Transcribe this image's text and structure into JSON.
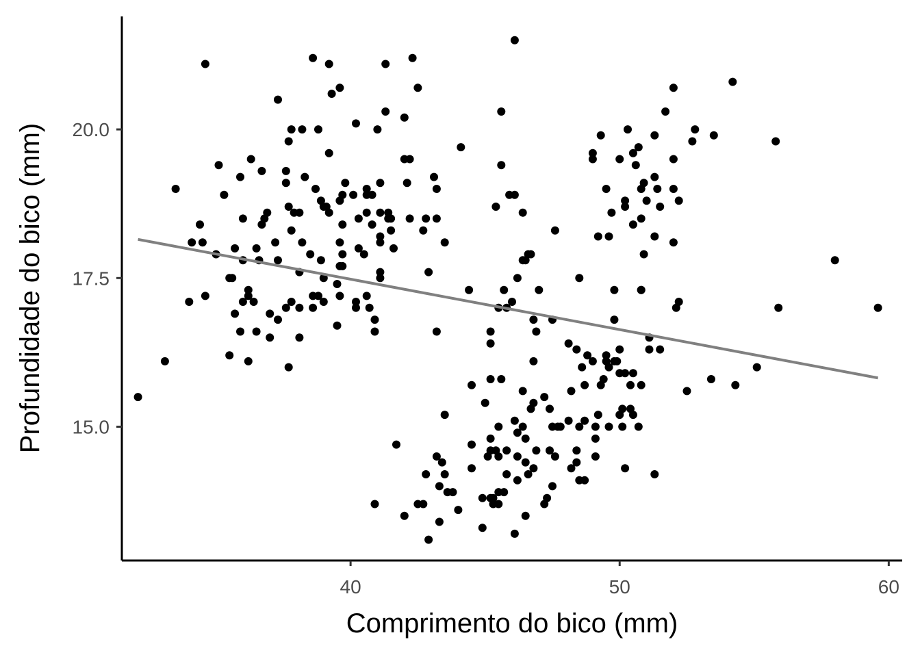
{
  "chart_data": {
    "type": "scatter",
    "xlabel": "Comprimento do bico (mm)",
    "ylabel": "Profundidade do bico (mm)",
    "xlim": [
      31.5,
      60.5
    ],
    "ylim": [
      12.75,
      21.9
    ],
    "x_ticks": [
      40,
      50,
      60
    ],
    "x_tick_labels": [
      "40",
      "50",
      "60"
    ],
    "y_ticks": [
      15.0,
      17.5,
      20.0
    ],
    "y_tick_labels": [
      "15.0",
      "17.5",
      "20.0"
    ],
    "grid": false,
    "point_color": "#000000",
    "line_color": "#808080",
    "trend_line": {
      "x": [
        32.1,
        59.6
      ],
      "y": [
        18.15,
        15.82
      ]
    },
    "series": [
      {
        "points": [
          [
            32.1,
            15.5
          ],
          [
            33.1,
            16.1
          ],
          [
            33.5,
            19.0
          ],
          [
            34.0,
            17.1
          ],
          [
            34.1,
            18.1
          ],
          [
            34.4,
            18.4
          ],
          [
            34.5,
            18.1
          ],
          [
            34.6,
            21.1
          ],
          [
            34.6,
            17.2
          ],
          [
            35.0,
            17.9
          ],
          [
            35.1,
            19.4
          ],
          [
            35.3,
            18.9
          ],
          [
            35.5,
            17.5
          ],
          [
            35.5,
            16.2
          ],
          [
            35.6,
            17.5
          ],
          [
            35.7,
            16.9
          ],
          [
            35.7,
            18.0
          ],
          [
            35.9,
            19.2
          ],
          [
            35.9,
            16.6
          ],
          [
            36.0,
            17.8
          ],
          [
            36.0,
            17.1
          ],
          [
            36.0,
            18.5
          ],
          [
            36.2,
            17.2
          ],
          [
            36.2,
            17.3
          ],
          [
            36.2,
            16.1
          ],
          [
            36.3,
            19.5
          ],
          [
            36.4,
            17.1
          ],
          [
            36.5,
            18.0
          ],
          [
            36.5,
            16.6
          ],
          [
            36.6,
            17.8
          ],
          [
            36.7,
            18.4
          ],
          [
            36.7,
            19.3
          ],
          [
            36.8,
            18.5
          ],
          [
            36.9,
            18.6
          ],
          [
            37.0,
            16.9
          ],
          [
            37.0,
            16.5
          ],
          [
            37.2,
            18.1
          ],
          [
            37.3,
            20.5
          ],
          [
            37.3,
            17.8
          ],
          [
            37.3,
            16.8
          ],
          [
            37.6,
            19.3
          ],
          [
            37.6,
            17.0
          ],
          [
            37.6,
            19.1
          ],
          [
            37.7,
            18.7
          ],
          [
            37.7,
            16.0
          ],
          [
            37.7,
            19.8
          ],
          [
            37.8,
            17.1
          ],
          [
            37.8,
            18.3
          ],
          [
            37.8,
            20.0
          ],
          [
            37.9,
            18.6
          ],
          [
            38.1,
            18.6
          ],
          [
            38.1,
            17.6
          ],
          [
            38.1,
            17.0
          ],
          [
            38.1,
            16.5
          ],
          [
            38.2,
            18.1
          ],
          [
            38.2,
            20.0
          ],
          [
            38.3,
            19.2
          ],
          [
            38.5,
            17.9
          ],
          [
            38.6,
            21.2
          ],
          [
            38.6,
            17.2
          ],
          [
            38.6,
            17.0
          ],
          [
            38.7,
            19.0
          ],
          [
            38.8,
            17.2
          ],
          [
            38.8,
            20.0
          ],
          [
            38.9,
            18.8
          ],
          [
            38.9,
            17.8
          ],
          [
            39.0,
            18.7
          ],
          [
            39.0,
            17.1
          ],
          [
            39.0,
            17.5
          ],
          [
            39.1,
            18.7
          ],
          [
            39.2,
            19.6
          ],
          [
            39.2,
            21.1
          ],
          [
            39.2,
            18.6
          ],
          [
            39.3,
            20.6
          ],
          [
            39.5,
            17.4
          ],
          [
            39.5,
            16.7
          ],
          [
            39.6,
            18.8
          ],
          [
            39.6,
            17.7
          ],
          [
            39.6,
            20.7
          ],
          [
            39.6,
            18.1
          ],
          [
            39.6,
            17.2
          ],
          [
            39.7,
            18.4
          ],
          [
            39.7,
            17.9
          ],
          [
            39.7,
            18.9
          ],
          [
            39.7,
            17.7
          ],
          [
            39.8,
            19.1
          ],
          [
            40.1,
            18.9
          ],
          [
            40.2,
            17.0
          ],
          [
            40.2,
            17.1
          ],
          [
            40.2,
            20.1
          ],
          [
            40.3,
            18.5
          ],
          [
            40.3,
            18.0
          ],
          [
            40.5,
            17.9
          ],
          [
            40.6,
            18.9
          ],
          [
            40.6,
            18.6
          ],
          [
            40.6,
            19.0
          ],
          [
            40.6,
            17.2
          ],
          [
            40.7,
            17.0
          ],
          [
            40.8,
            18.4
          ],
          [
            40.8,
            18.9
          ],
          [
            40.9,
            16.8
          ],
          [
            40.9,
            16.6
          ],
          [
            41.0,
            20.0
          ],
          [
            41.1,
            18.2
          ],
          [
            41.1,
            19.1
          ],
          [
            41.1,
            18.6
          ],
          [
            41.1,
            17.6
          ],
          [
            41.1,
            18.1
          ],
          [
            41.1,
            17.5
          ],
          [
            41.3,
            21.1
          ],
          [
            41.3,
            20.3
          ],
          [
            41.4,
            18.6
          ],
          [
            41.4,
            18.5
          ],
          [
            41.5,
            18.5
          ],
          [
            41.5,
            18.3
          ],
          [
            41.6,
            18.0
          ],
          [
            42.0,
            20.2
          ],
          [
            42.0,
            19.5
          ],
          [
            42.1,
            19.1
          ],
          [
            42.2,
            18.5
          ],
          [
            42.2,
            19.5
          ],
          [
            42.3,
            21.2
          ],
          [
            42.5,
            20.7
          ],
          [
            42.7,
            18.3
          ],
          [
            42.8,
            18.5
          ],
          [
            42.9,
            17.6
          ],
          [
            43.1,
            19.2
          ],
          [
            43.2,
            19.0
          ],
          [
            43.2,
            18.5
          ],
          [
            43.2,
            16.6
          ],
          [
            43.5,
            18.1
          ],
          [
            44.1,
            19.7
          ],
          [
            45.4,
            18.7
          ],
          [
            45.5,
            17.0
          ],
          [
            45.6,
            19.4
          ],
          [
            45.6,
            20.3
          ],
          [
            45.7,
            17.3
          ],
          [
            45.8,
            17.0
          ],
          [
            45.9,
            18.9
          ],
          [
            46.0,
            17.1
          ],
          [
            46.1,
            18.9
          ],
          [
            46.1,
            21.5
          ],
          [
            46.2,
            17.5
          ],
          [
            46.4,
            18.6
          ],
          [
            46.4,
            17.8
          ],
          [
            46.5,
            17.8
          ],
          [
            46.6,
            17.9
          ],
          [
            46.7,
            17.9
          ],
          [
            46.8,
            16.8
          ],
          [
            46.9,
            16.6
          ],
          [
            47.0,
            17.3
          ],
          [
            47.5,
            16.8
          ],
          [
            47.6,
            18.3
          ],
          [
            48.5,
            17.5
          ],
          [
            49.0,
            19.6
          ],
          [
            49.0,
            19.5
          ],
          [
            49.2,
            18.2
          ],
          [
            49.3,
            19.9
          ],
          [
            49.5,
            19.0
          ],
          [
            49.6,
            18.2
          ],
          [
            49.7,
            18.6
          ],
          [
            49.8,
            17.3
          ],
          [
            49.8,
            16.8
          ],
          [
            50.0,
            19.5
          ],
          [
            50.2,
            18.7
          ],
          [
            50.2,
            18.8
          ],
          [
            50.3,
            20.0
          ],
          [
            50.5,
            18.4
          ],
          [
            50.5,
            19.6
          ],
          [
            50.6,
            19.4
          ],
          [
            50.7,
            19.7
          ],
          [
            50.8,
            18.5
          ],
          [
            50.8,
            19.0
          ],
          [
            50.8,
            17.3
          ],
          [
            50.9,
            17.9
          ],
          [
            50.9,
            19.1
          ],
          [
            51.0,
            18.8
          ],
          [
            51.3,
            19.2
          ],
          [
            51.3,
            18.2
          ],
          [
            51.3,
            19.9
          ],
          [
            51.4,
            19.0
          ],
          [
            51.5,
            18.7
          ],
          [
            51.7,
            20.3
          ],
          [
            52.0,
            18.1
          ],
          [
            52.0,
            19.5
          ],
          [
            52.0,
            20.7
          ],
          [
            52.0,
            19.0
          ],
          [
            52.2,
            18.8
          ],
          [
            52.7,
            19.8
          ],
          [
            52.8,
            20.0
          ],
          [
            53.5,
            19.9
          ],
          [
            54.2,
            20.8
          ],
          [
            55.8,
            19.8
          ],
          [
            58.0,
            17.8
          ],
          [
            40.9,
            13.7
          ],
          [
            41.7,
            14.7
          ],
          [
            42.0,
            13.5
          ],
          [
            42.5,
            13.7
          ],
          [
            42.7,
            13.7
          ],
          [
            42.8,
            14.2
          ],
          [
            42.9,
            13.1
          ],
          [
            43.2,
            14.5
          ],
          [
            43.3,
            13.4
          ],
          [
            43.3,
            14.0
          ],
          [
            43.4,
            14.4
          ],
          [
            43.5,
            14.2
          ],
          [
            43.5,
            15.2
          ],
          [
            43.6,
            13.9
          ],
          [
            43.8,
            13.9
          ],
          [
            44.0,
            13.6
          ],
          [
            44.4,
            17.3
          ],
          [
            44.5,
            14.3
          ],
          [
            44.5,
            15.7
          ],
          [
            44.5,
            14.7
          ],
          [
            44.9,
            13.3
          ],
          [
            44.9,
            13.8
          ],
          [
            45.0,
            15.4
          ],
          [
            45.1,
            14.5
          ],
          [
            45.2,
            13.8
          ],
          [
            45.2,
            14.8
          ],
          [
            45.2,
            16.4
          ],
          [
            45.2,
            15.8
          ],
          [
            45.2,
            16.6
          ],
          [
            45.2,
            14.6
          ],
          [
            45.3,
            13.7
          ],
          [
            45.3,
            13.8
          ],
          [
            45.4,
            14.6
          ],
          [
            45.5,
            13.7
          ],
          [
            45.5,
            13.9
          ],
          [
            45.5,
            15.0
          ],
          [
            45.5,
            14.5
          ],
          [
            45.6,
            15.8
          ],
          [
            45.7,
            13.9
          ],
          [
            45.8,
            14.6
          ],
          [
            45.8,
            14.2
          ],
          [
            46.1,
            13.2
          ],
          [
            46.1,
            15.1
          ],
          [
            46.2,
            14.5
          ],
          [
            46.2,
            14.9
          ],
          [
            46.2,
            14.1
          ],
          [
            46.4,
            15.0
          ],
          [
            46.4,
            15.6
          ],
          [
            46.5,
            14.4
          ],
          [
            46.5,
            14.8
          ],
          [
            46.5,
            13.5
          ],
          [
            46.6,
            14.2
          ],
          [
            46.7,
            15.3
          ],
          [
            46.8,
            15.4
          ],
          [
            46.8,
            16.1
          ],
          [
            46.8,
            14.3
          ],
          [
            46.9,
            14.6
          ],
          [
            47.2,
            13.7
          ],
          [
            47.2,
            15.5
          ],
          [
            47.3,
            13.8
          ],
          [
            47.4,
            15.3
          ],
          [
            47.4,
            14.6
          ],
          [
            47.5,
            14.0
          ],
          [
            47.5,
            15.0
          ],
          [
            47.6,
            14.5
          ],
          [
            47.7,
            15.0
          ],
          [
            47.8,
            15.0
          ],
          [
            48.1,
            16.4
          ],
          [
            48.1,
            15.1
          ],
          [
            48.2,
            14.3
          ],
          [
            48.2,
            15.6
          ],
          [
            48.4,
            14.4
          ],
          [
            48.4,
            16.3
          ],
          [
            48.4,
            14.6
          ],
          [
            48.5,
            14.1
          ],
          [
            48.5,
            15.0
          ],
          [
            48.6,
            16.0
          ],
          [
            48.7,
            14.1
          ],
          [
            48.7,
            15.1
          ],
          [
            48.7,
            15.7
          ],
          [
            48.8,
            16.2
          ],
          [
            49.0,
            16.1
          ],
          [
            49.1,
            14.8
          ],
          [
            49.1,
            14.5
          ],
          [
            49.1,
            15.0
          ],
          [
            49.2,
            15.2
          ],
          [
            49.3,
            15.7
          ],
          [
            49.4,
            15.8
          ],
          [
            49.5,
            16.1
          ],
          [
            49.5,
            16.2
          ],
          [
            49.6,
            15.0
          ],
          [
            49.6,
            16.0
          ],
          [
            49.8,
            16.1
          ],
          [
            49.9,
            16.1
          ],
          [
            50.0,
            15.9
          ],
          [
            50.0,
            15.2
          ],
          [
            50.0,
            16.3
          ],
          [
            50.1,
            15.0
          ],
          [
            50.1,
            15.3
          ],
          [
            50.2,
            14.3
          ],
          [
            50.2,
            15.9
          ],
          [
            50.4,
            15.3
          ],
          [
            50.4,
            15.7
          ],
          [
            50.5,
            15.9
          ],
          [
            50.5,
            15.2
          ],
          [
            50.7,
            15.0
          ],
          [
            50.8,
            15.7
          ],
          [
            50.8,
            17.3
          ],
          [
            51.1,
            16.5
          ],
          [
            51.1,
            16.3
          ],
          [
            51.3,
            14.2
          ],
          [
            51.5,
            16.3
          ],
          [
            52.1,
            17.0
          ],
          [
            52.2,
            17.1
          ],
          [
            52.5,
            15.6
          ],
          [
            53.4,
            15.8
          ],
          [
            54.3,
            15.7
          ],
          [
            55.1,
            16.0
          ],
          [
            55.9,
            17.0
          ],
          [
            59.6,
            17.0
          ]
        ]
      }
    ]
  }
}
